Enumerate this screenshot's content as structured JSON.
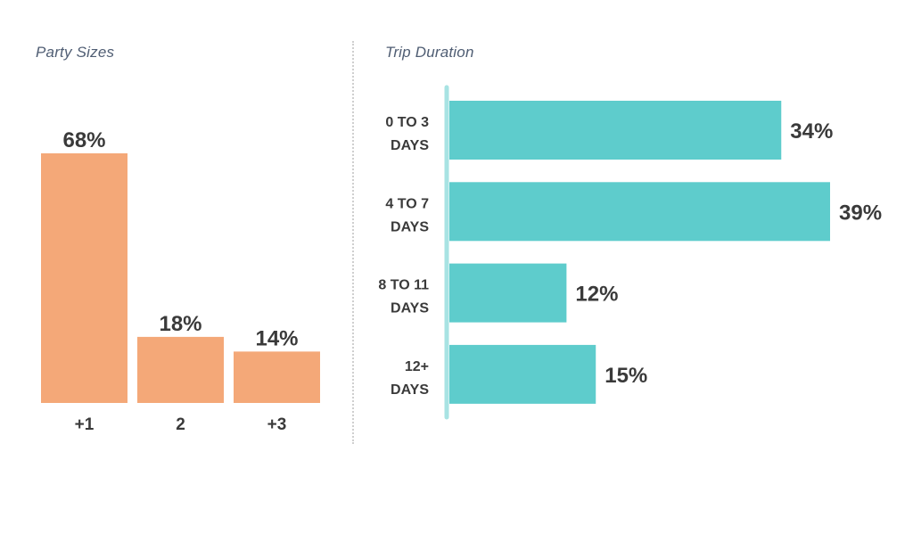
{
  "chart_data": [
    {
      "type": "bar",
      "title": "Party Sizes",
      "orientation": "vertical",
      "categories": [
        "+1",
        "2",
        "+3"
      ],
      "values": [
        68,
        18,
        14
      ],
      "value_labels": [
        "68%",
        "18%",
        "14%"
      ],
      "unit": "%",
      "ylim": [
        0,
        68
      ],
      "grid": false,
      "color": "#f4a878"
    },
    {
      "type": "bar",
      "title": "Trip Duration",
      "orientation": "horizontal",
      "categories": [
        [
          "0 TO 3",
          "DAYS"
        ],
        [
          "4 TO 7",
          "DAYS"
        ],
        [
          "8 TO 11",
          "DAYS"
        ],
        [
          "12+",
          "DAYS"
        ]
      ],
      "values": [
        34,
        39,
        12,
        15
      ],
      "value_labels": [
        "34%",
        "39%",
        "12%",
        "15%"
      ],
      "unit": "%",
      "xlim": [
        0,
        39
      ],
      "grid": false,
      "color": "#5ecccc",
      "axis_color": "#a8e3e3"
    }
  ]
}
